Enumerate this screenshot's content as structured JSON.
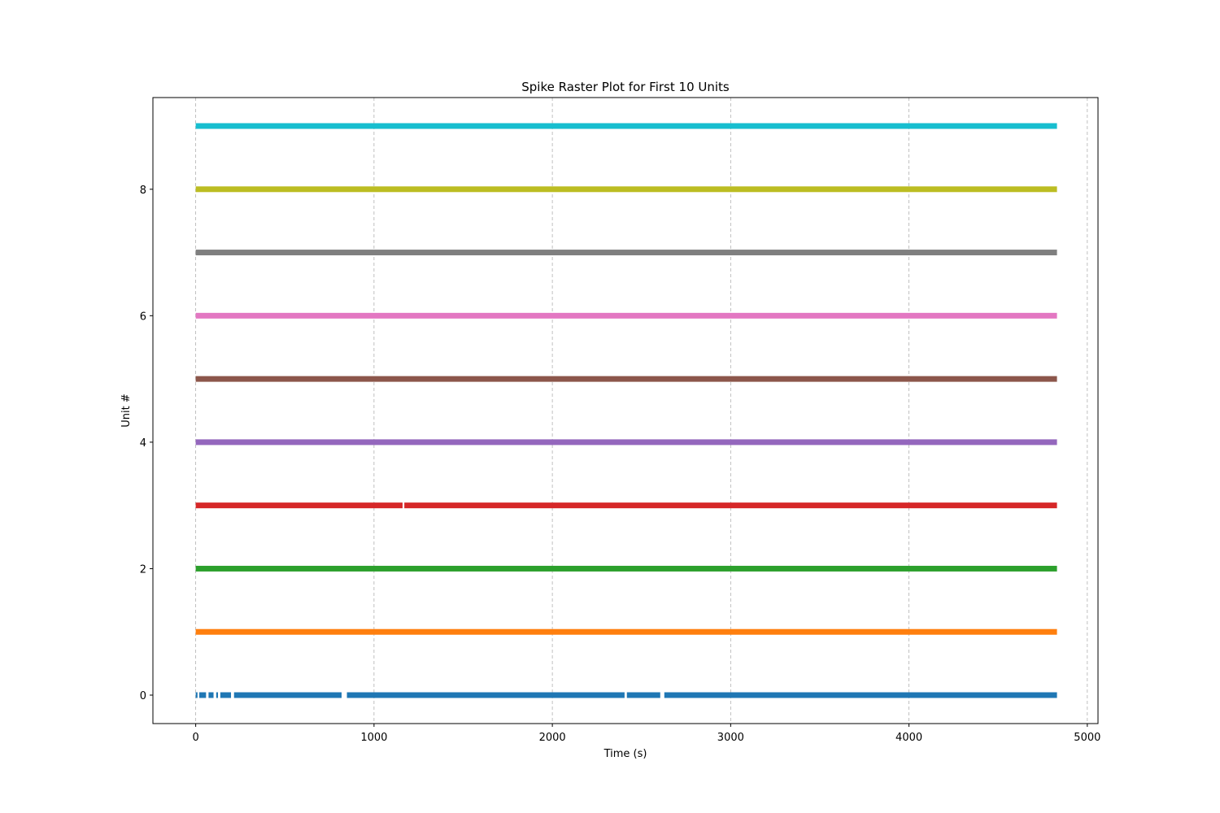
{
  "chart_data": {
    "type": "scatter",
    "title": "Spike Raster Plot for First 10 Units",
    "xlabel": "Time (s)",
    "ylabel": "Unit #",
    "xlim": [
      -240,
      5060
    ],
    "ylim": [
      -0.45,
      9.45
    ],
    "x_ticks": [
      0,
      1000,
      2000,
      3000,
      4000,
      5000
    ],
    "y_ticks": [
      0,
      2,
      4,
      6,
      8
    ],
    "grid": "x-axis dashed",
    "legend": "none",
    "series": [
      {
        "unit": 0,
        "color": "#1f77b4",
        "spikes": [
          [
            0,
            10
          ],
          [
            20,
            58
          ],
          [
            72,
            100
          ],
          [
            115,
            125
          ],
          [
            138,
            198
          ],
          [
            215,
            818
          ],
          [
            848,
            2405
          ],
          [
            2418,
            2605
          ],
          [
            2628,
            4830
          ]
        ]
      },
      {
        "unit": 1,
        "color": "#ff7f0e",
        "spikes": [
          [
            0,
            4830
          ]
        ]
      },
      {
        "unit": 2,
        "color": "#2ca02c",
        "spikes": [
          [
            0,
            4830
          ]
        ]
      },
      {
        "unit": 3,
        "color": "#d62728",
        "spikes": [
          [
            0,
            1160
          ],
          [
            1170,
            4830
          ]
        ]
      },
      {
        "unit": 4,
        "color": "#9467bd",
        "spikes": [
          [
            0,
            4830
          ]
        ]
      },
      {
        "unit": 5,
        "color": "#8c564b",
        "spikes": [
          [
            0,
            4830
          ]
        ]
      },
      {
        "unit": 6,
        "color": "#e377c2",
        "spikes": [
          [
            0,
            4830
          ]
        ]
      },
      {
        "unit": 7,
        "color": "#7f7f7f",
        "spikes": [
          [
            0,
            4830
          ]
        ]
      },
      {
        "unit": 8,
        "color": "#bcbd22",
        "spikes": [
          [
            0,
            4830
          ]
        ]
      },
      {
        "unit": 9,
        "color": "#17becf",
        "spikes": [
          [
            0,
            4830
          ]
        ]
      }
    ]
  }
}
